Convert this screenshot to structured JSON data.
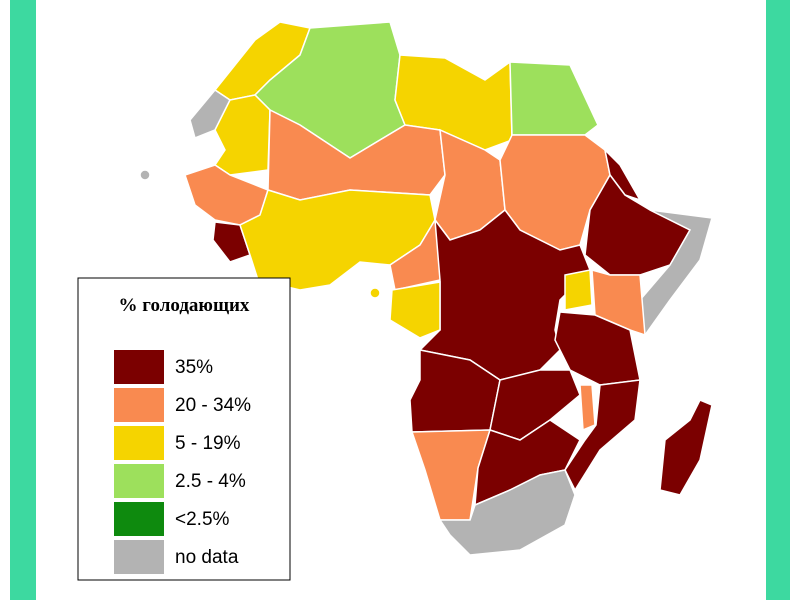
{
  "legend": {
    "title": "% голодающих",
    "items": [
      {
        "label": "35%",
        "color": "#7b0000"
      },
      {
        "label": "20 - 34%",
        "color": "#f98a50"
      },
      {
        "label": "5 - 19%",
        "color": "#f5d400"
      },
      {
        "label": "2.5 - 4%",
        "color": "#9de05c"
      },
      {
        "label": "<2.5%",
        "color": "#0e8a0e"
      },
      {
        "label": "no data",
        "color": "#b3b3b3"
      }
    ]
  }
}
